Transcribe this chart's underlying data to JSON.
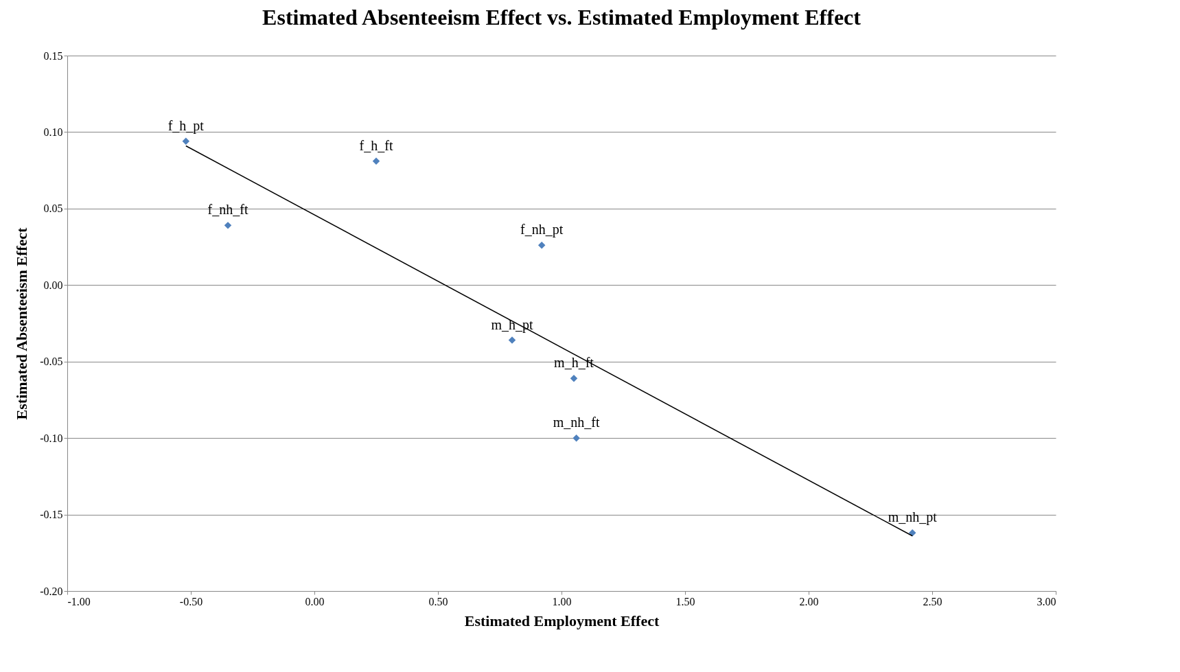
{
  "chart_data": {
    "type": "scatter",
    "title": "Estimated Absenteeism Effect vs. Estimated Employment Effect",
    "xlabel": "Estimated Employment Effect",
    "ylabel": "Estimated Absenteeism Effect",
    "xlim": [
      -1,
      3
    ],
    "xticks": [
      {
        "value": -1,
        "label": "-1.00"
      },
      {
        "value": -0.5,
        "label": "-0.50"
      },
      {
        "value": 0,
        "label": "0.00"
      },
      {
        "value": 0.5,
        "label": "0.50"
      },
      {
        "value": 1,
        "label": "1.00"
      },
      {
        "value": 1.5,
        "label": "1.50"
      },
      {
        "value": 2,
        "label": "2.00"
      },
      {
        "value": 2.5,
        "label": "2.50"
      },
      {
        "value": 3,
        "label": "3.00"
      }
    ],
    "ylim": [
      -0.2,
      0.15
    ],
    "yticks": [
      {
        "value": -0.2,
        "label": "-0.20"
      },
      {
        "value": -0.15,
        "label": "-0.15"
      },
      {
        "value": -0.1,
        "label": "-0.10"
      },
      {
        "value": -0.05,
        "label": "-0.05"
      },
      {
        "value": 0,
        "label": "0.00"
      },
      {
        "value": 0.05,
        "label": "0.05"
      },
      {
        "value": 0.1,
        "label": "0.10"
      },
      {
        "value": 0.15,
        "label": "0.15"
      }
    ],
    "grid": "y",
    "marker": "diamond",
    "series": [
      {
        "color": "#4f81bd",
        "x": [
          -0.52,
          -0.35,
          0.25,
          0.92,
          0.8,
          1.05,
          1.06,
          2.42
        ],
        "values": [
          0.094,
          0.039,
          0.081,
          0.026,
          -0.036,
          -0.061,
          -0.1,
          -0.162
        ]
      },
      {
        "type": "line",
        "marker": "none",
        "color": "#000000",
        "x": [
          -0.52,
          2.42
        ],
        "values": [
          0.091,
          -0.164
        ]
      }
    ],
    "annotations": [
      {
        "text": "f_h_pt",
        "x": -0.52,
        "y": 0.094
      },
      {
        "text": "f_nh_ft",
        "x": -0.35,
        "y": 0.039
      },
      {
        "text": "f_h_ft",
        "x": 0.25,
        "y": 0.081
      },
      {
        "text": "f_nh_pt",
        "x": 0.92,
        "y": 0.026
      },
      {
        "text": "m_h_pt",
        "x": 0.8,
        "y": -0.036
      },
      {
        "text": "m_h_ft",
        "x": 1.05,
        "y": -0.061
      },
      {
        "text": "m_nh_ft",
        "x": 1.06,
        "y": -0.1
      },
      {
        "text": "m_nh_pt",
        "x": 2.42,
        "y": -0.162
      }
    ]
  }
}
